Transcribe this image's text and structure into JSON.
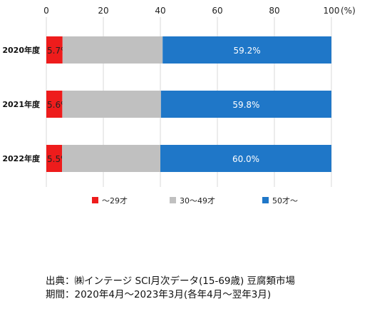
{
  "chart_data": {
    "type": "bar",
    "orientation": "horizontal",
    "stacked": true,
    "categories": [
      "2020年度",
      "2021年度",
      "2022年度"
    ],
    "series": [
      {
        "name": "～29才",
        "color": "#ee1c1c",
        "values": [
          5.7,
          5.6,
          5.5
        ],
        "labels": [
          "5.7%",
          "5.6%",
          "5.5%"
        ]
      },
      {
        "name": "30～49才",
        "color": "#c0c0c0",
        "values": [
          35.1,
          34.6,
          34.5
        ],
        "labels": [
          "",
          "",
          ""
        ]
      },
      {
        "name": "50才～",
        "color": "#1f77c8",
        "values": [
          59.2,
          59.8,
          60.0
        ],
        "labels": [
          "59.2%",
          "59.8%",
          "60.0%"
        ]
      }
    ],
    "xlim": [
      0,
      100
    ],
    "xticks": [
      0,
      20,
      40,
      60,
      80,
      100
    ],
    "x_unit_label": "(%)",
    "grid": true,
    "legend_position": "bottom"
  },
  "footer": {
    "source": "出典：㈱インテージ SCI月次データ(15-69歳) 豆腐類市場",
    "period": "期間：2020年4月～2023年3月(各年4月～翌年3月)"
  }
}
